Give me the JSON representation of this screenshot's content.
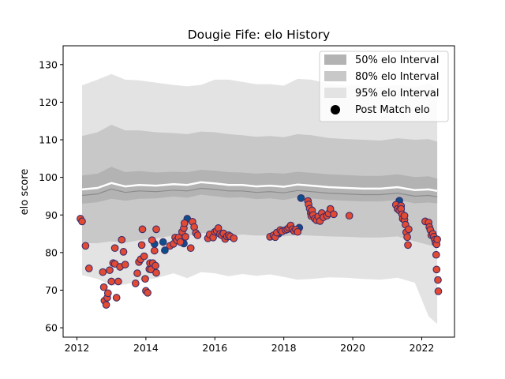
{
  "chart_data": {
    "type": "scatter",
    "title": "Dougie Fife: elo History",
    "xlabel": "",
    "ylabel": "elo score",
    "xlim": [
      2011.6,
      2022.95
    ],
    "ylim": [
      57.5,
      135
    ],
    "x_ticks": [
      2012,
      2014,
      2016,
      2018,
      2020,
      2022
    ],
    "y_ticks": [
      60,
      70,
      80,
      90,
      100,
      110,
      120,
      130
    ],
    "legend": {
      "placement": "top-right",
      "entries": [
        "50% elo Interval",
        "80% elo Interval",
        "95% elo Interval",
        "Post Match elo"
      ]
    },
    "colors": {
      "band50": "#b3b3b3",
      "band80": "#c8c8c8",
      "band95": "#e3e3e3",
      "dot_red": "#e24a33",
      "dot_blue": "#0d4f8b",
      "dot_edge": "#3b2d6b"
    },
    "mean_line": {
      "x": [
        2012.15,
        2012.6,
        2013.0,
        2013.4,
        2013.8,
        2014.3,
        2014.8,
        2015.2,
        2015.6,
        2016.0,
        2016.4,
        2016.8,
        2017.2,
        2017.6,
        2018.0,
        2018.4,
        2018.8,
        2019.3,
        2019.8,
        2020.3,
        2020.8,
        2021.3,
        2021.8,
        2022.2,
        2022.45
      ],
      "y": [
        96.8,
        97.2,
        98.5,
        97.6,
        98.0,
        97.8,
        98.2,
        98.0,
        98.7,
        98.4,
        98.0,
        98.0,
        97.6,
        97.8,
        97.5,
        98.1,
        97.8,
        97.4,
        97.2,
        97.0,
        97.0,
        97.4,
        96.6,
        96.8,
        96.4
      ]
    },
    "bands": {
      "x": [
        2012.15,
        2012.6,
        2013.0,
        2013.4,
        2013.8,
        2014.3,
        2014.8,
        2015.2,
        2015.6,
        2016.0,
        2016.4,
        2016.8,
        2017.2,
        2017.6,
        2018.0,
        2018.4,
        2018.8,
        2019.3,
        2019.8,
        2020.3,
        2020.8,
        2021.3,
        2021.8,
        2022.2,
        2022.45
      ],
      "p50_upper": [
        100.5,
        101.0,
        102.8,
        101.4,
        101.7,
        101.3,
        101.5,
        101.4,
        102.0,
        101.8,
        101.4,
        101.3,
        101.0,
        101.2,
        101.0,
        101.5,
        101.2,
        100.8,
        100.6,
        100.4,
        100.4,
        100.8,
        100.1,
        100.3,
        99.7
      ],
      "p50_lower": [
        93.0,
        93.4,
        94.3,
        93.8,
        94.3,
        94.4,
        94.9,
        94.6,
        95.4,
        95.0,
        94.6,
        94.7,
        94.2,
        94.4,
        94.0,
        94.7,
        94.4,
        94.0,
        93.8,
        93.6,
        93.6,
        94.0,
        93.1,
        93.3,
        93.1
      ],
      "p80_upper": [
        111.0,
        112.0,
        114.0,
        112.5,
        112.5,
        112.0,
        111.8,
        111.5,
        112.2,
        112.0,
        111.5,
        111.2,
        110.8,
        111.0,
        110.7,
        111.5,
        111.2,
        110.5,
        110.2,
        110.0,
        109.8,
        110.4,
        110.0,
        110.2,
        109.5
      ],
      "p80_lower": [
        82.5,
        82.5,
        83.0,
        82.6,
        83.3,
        83.8,
        84.5,
        84.4,
        85.2,
        85.0,
        84.3,
        84.8,
        84.5,
        84.6,
        84.3,
        84.7,
        84.5,
        84.3,
        84.2,
        84.0,
        84.0,
        84.3,
        83.0,
        82.0,
        81.5
      ],
      "p95_upper": [
        124.5,
        126.0,
        127.5,
        126.0,
        125.8,
        125.2,
        124.6,
        124.2,
        124.6,
        126.0,
        126.0,
        125.4,
        124.8,
        124.8,
        124.4,
        126.2,
        126.0,
        124.9,
        124.5,
        124.3,
        124.0,
        124.6,
        124.0,
        125.0,
        123.5
      ],
      "p95_lower": [
        74.0,
        73.0,
        71.2,
        71.5,
        72.5,
        73.2,
        74.5,
        73.2,
        74.8,
        74.5,
        73.7,
        74.3,
        73.8,
        74.2,
        73.5,
        72.8,
        73.0,
        73.4,
        73.3,
        73.0,
        72.8,
        73.3,
        72.0,
        63.0,
        61.0
      ]
    },
    "points_blue": [
      [
        2014.25,
        82.3
      ],
      [
        2014.5,
        82.8
      ],
      [
        2014.55,
        80.6
      ],
      [
        2015.1,
        82.4
      ],
      [
        2015.2,
        89.0
      ],
      [
        2017.85,
        85.0
      ],
      [
        2018.45,
        86.6
      ],
      [
        2018.5,
        94.5
      ],
      [
        2021.35,
        93.8
      ]
    ],
    "points_red": [
      [
        2012.1,
        89.0
      ],
      [
        2012.15,
        88.3
      ],
      [
        2012.25,
        81.8
      ],
      [
        2012.35,
        75.8
      ],
      [
        2012.75,
        74.8
      ],
      [
        2012.78,
        70.8
      ],
      [
        2012.8,
        67.2
      ],
      [
        2012.85,
        66.1
      ],
      [
        2012.88,
        68.0
      ],
      [
        2012.9,
        69.2
      ],
      [
        2012.95,
        75.3
      ],
      [
        2013.0,
        72.3
      ],
      [
        2013.05,
        77.2
      ],
      [
        2013.1,
        77.0
      ],
      [
        2013.1,
        81.2
      ],
      [
        2013.15,
        68.0
      ],
      [
        2013.2,
        72.3
      ],
      [
        2013.25,
        76.2
      ],
      [
        2013.3,
        83.4
      ],
      [
        2013.35,
        80.2
      ],
      [
        2013.4,
        76.8
      ],
      [
        2013.7,
        71.8
      ],
      [
        2013.75,
        74.5
      ],
      [
        2013.8,
        77.5
      ],
      [
        2013.85,
        78.2
      ],
      [
        2013.88,
        82.0
      ],
      [
        2013.9,
        86.2
      ],
      [
        2013.95,
        79.0
      ],
      [
        2013.98,
        73.0
      ],
      [
        2014.0,
        69.8
      ],
      [
        2014.05,
        69.3
      ],
      [
        2014.1,
        75.6
      ],
      [
        2014.12,
        77.2
      ],
      [
        2014.15,
        75.5
      ],
      [
        2014.18,
        83.3
      ],
      [
        2014.2,
        77.2
      ],
      [
        2014.25,
        80.5
      ],
      [
        2014.28,
        76.5
      ],
      [
        2014.3,
        74.6
      ],
      [
        2014.3,
        86.2
      ],
      [
        2014.7,
        81.8
      ],
      [
        2014.8,
        82.3
      ],
      [
        2014.85,
        84.0
      ],
      [
        2014.9,
        83.3
      ],
      [
        2014.95,
        84.0
      ],
      [
        2015.0,
        82.8
      ],
      [
        2015.05,
        85.5
      ],
      [
        2015.1,
        86.5
      ],
      [
        2015.12,
        87.8
      ],
      [
        2015.15,
        84.2
      ],
      [
        2015.3,
        81.2
      ],
      [
        2015.35,
        88.2
      ],
      [
        2015.4,
        86.8
      ],
      [
        2015.45,
        85.2
      ],
      [
        2015.5,
        84.6
      ],
      [
        2015.8,
        83.8
      ],
      [
        2015.85,
        84.8
      ],
      [
        2015.95,
        84.0
      ],
      [
        2016.0,
        85.5
      ],
      [
        2016.05,
        85.8
      ],
      [
        2016.1,
        86.5
      ],
      [
        2016.15,
        84.9
      ],
      [
        2016.2,
        84.6
      ],
      [
        2016.25,
        85.1
      ],
      [
        2016.3,
        83.6
      ],
      [
        2016.35,
        84.3
      ],
      [
        2016.4,
        84.6
      ],
      [
        2016.45,
        84.3
      ],
      [
        2016.55,
        83.8
      ],
      [
        2017.6,
        84.2
      ],
      [
        2017.7,
        84.6
      ],
      [
        2017.75,
        84.1
      ],
      [
        2017.8,
        85.3
      ],
      [
        2017.9,
        86.0
      ],
      [
        2017.95,
        85.6
      ],
      [
        2018.05,
        86.0
      ],
      [
        2018.1,
        86.2
      ],
      [
        2018.15,
        86.6
      ],
      [
        2018.2,
        87.2
      ],
      [
        2018.25,
        86.2
      ],
      [
        2018.3,
        85.7
      ],
      [
        2018.35,
        86.1
      ],
      [
        2018.4,
        85.5
      ],
      [
        2018.7,
        93.7
      ],
      [
        2018.72,
        92.8
      ],
      [
        2018.75,
        91.7
      ],
      [
        2018.78,
        90.5
      ],
      [
        2018.8,
        89.7
      ],
      [
        2018.82,
        91.2
      ],
      [
        2018.85,
        90.0
      ],
      [
        2018.9,
        89.0
      ],
      [
        2018.95,
        88.6
      ],
      [
        2019.0,
        89.6
      ],
      [
        2019.05,
        88.4
      ],
      [
        2019.1,
        90.5
      ],
      [
        2019.15,
        89.4
      ],
      [
        2019.25,
        89.8
      ],
      [
        2019.3,
        90.4
      ],
      [
        2019.35,
        91.6
      ],
      [
        2019.45,
        90.2
      ],
      [
        2019.9,
        89.8
      ],
      [
        2021.25,
        92.7
      ],
      [
        2021.3,
        91.6
      ],
      [
        2021.35,
        91.2
      ],
      [
        2021.4,
        92.4
      ],
      [
        2021.4,
        91.6
      ],
      [
        2021.43,
        90.2
      ],
      [
        2021.45,
        89.0
      ],
      [
        2021.5,
        88.7
      ],
      [
        2021.5,
        89.8
      ],
      [
        2021.53,
        87.4
      ],
      [
        2021.55,
        85.4
      ],
      [
        2021.58,
        84.1
      ],
      [
        2021.6,
        82.0
      ],
      [
        2021.62,
        86.2
      ],
      [
        2022.1,
        88.3
      ],
      [
        2022.2,
        88.0
      ],
      [
        2022.22,
        86.8
      ],
      [
        2022.25,
        86.0
      ],
      [
        2022.28,
        84.6
      ],
      [
        2022.32,
        85.0
      ],
      [
        2022.35,
        84.2
      ],
      [
        2022.38,
        83.4
      ],
      [
        2022.4,
        82.6
      ],
      [
        2022.43,
        82.2
      ],
      [
        2022.45,
        83.5
      ],
      [
        2022.42,
        79.4
      ],
      [
        2022.43,
        75.5
      ],
      [
        2022.47,
        72.7
      ],
      [
        2022.48,
        69.7
      ]
    ]
  }
}
